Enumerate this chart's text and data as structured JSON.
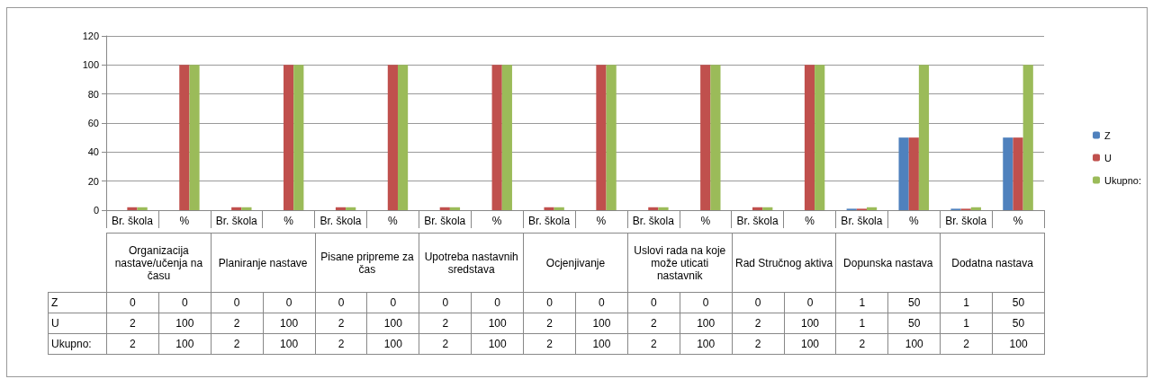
{
  "chart_data": {
    "type": "bar",
    "categories": [
      "Br. škola",
      "%",
      "Br. škola",
      "%",
      "Br. škola",
      "%",
      "Br. škola",
      "%",
      "Br. škola",
      "%",
      "Br. škola",
      "%",
      "Br. škola",
      "%",
      "Br. škola",
      "%",
      "Br. škola",
      "%"
    ],
    "series": [
      {
        "name": "Z",
        "color": "#4f81bd",
        "values": [
          0,
          0,
          0,
          0,
          0,
          0,
          0,
          0,
          0,
          0,
          0,
          0,
          0,
          0,
          1,
          50,
          1,
          50
        ]
      },
      {
        "name": "U",
        "color": "#c0504d",
        "values": [
          2,
          100,
          2,
          100,
          2,
          100,
          2,
          100,
          2,
          100,
          2,
          100,
          2,
          100,
          1,
          50,
          1,
          50
        ]
      },
      {
        "name": "Ukupno:",
        "color": "#9bbb59",
        "values": [
          2,
          100,
          2,
          100,
          2,
          100,
          2,
          100,
          2,
          100,
          2,
          100,
          2,
          100,
          2,
          100,
          2,
          100
        ]
      }
    ],
    "annotations": [
      "Organizacija nastave/učenja na času",
      "Planiranje nastave",
      "Pisane pripreme za čas",
      "Upotreba nastavnih sredstava",
      "Ocjenjivanje",
      "Uslovi rada na koje može uticati nastavnik",
      "Rad Stručnog aktiva",
      "Dopunska nastava",
      "Dodatna nastava"
    ],
    "ylim": [
      0,
      120
    ],
    "yticks": [
      0,
      20,
      40,
      60,
      80,
      100,
      120
    ],
    "grid": "y",
    "legend": "right",
    "data_labels": true
  }
}
